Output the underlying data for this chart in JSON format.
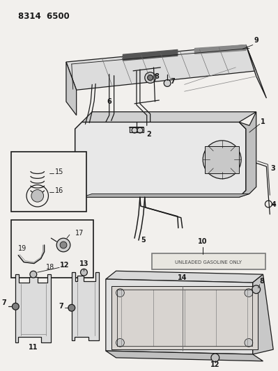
{
  "title": "8314  6500",
  "background_color": "#f2f0ed",
  "line_color": "#1a1a1a",
  "unlead_label": "UNLEADED GASOLINE ONLY",
  "fig_width": 3.99,
  "fig_height": 5.33,
  "dpi": 100
}
